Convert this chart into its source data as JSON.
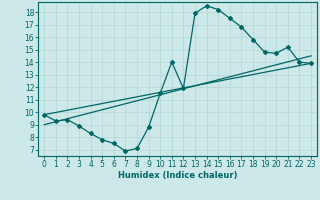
{
  "xlabel": "Humidex (Indice chaleur)",
  "background_color": "#cce8e8",
  "grid_color": "#b8d8d8",
  "line_color": "#006666",
  "xlim": [
    -0.5,
    23.5
  ],
  "ylim": [
    6.5,
    18.8
  ],
  "yticks": [
    7,
    8,
    9,
    10,
    11,
    12,
    13,
    14,
    15,
    16,
    17,
    18
  ],
  "xticks": [
    0,
    1,
    2,
    3,
    4,
    5,
    6,
    7,
    8,
    9,
    10,
    11,
    12,
    13,
    14,
    15,
    16,
    17,
    18,
    19,
    20,
    21,
    22,
    23
  ],
  "main_curve_x": [
    0,
    1,
    2,
    3,
    4,
    5,
    6,
    7,
    8,
    9,
    10,
    11,
    12,
    13,
    14,
    15,
    16,
    17,
    18,
    19,
    20,
    21,
    22,
    23
  ],
  "main_curve_y": [
    9.8,
    9.3,
    9.4,
    8.9,
    8.3,
    7.8,
    7.5,
    6.9,
    7.1,
    8.8,
    11.5,
    14.0,
    11.9,
    17.9,
    18.5,
    18.2,
    17.5,
    16.8,
    15.8,
    14.8,
    14.7,
    15.2,
    14.0,
    13.9
  ],
  "line1_x": [
    0,
    23
  ],
  "line1_y": [
    9.8,
    13.9
  ],
  "line2_x": [
    0,
    23
  ],
  "line2_y": [
    9.0,
    14.5
  ]
}
